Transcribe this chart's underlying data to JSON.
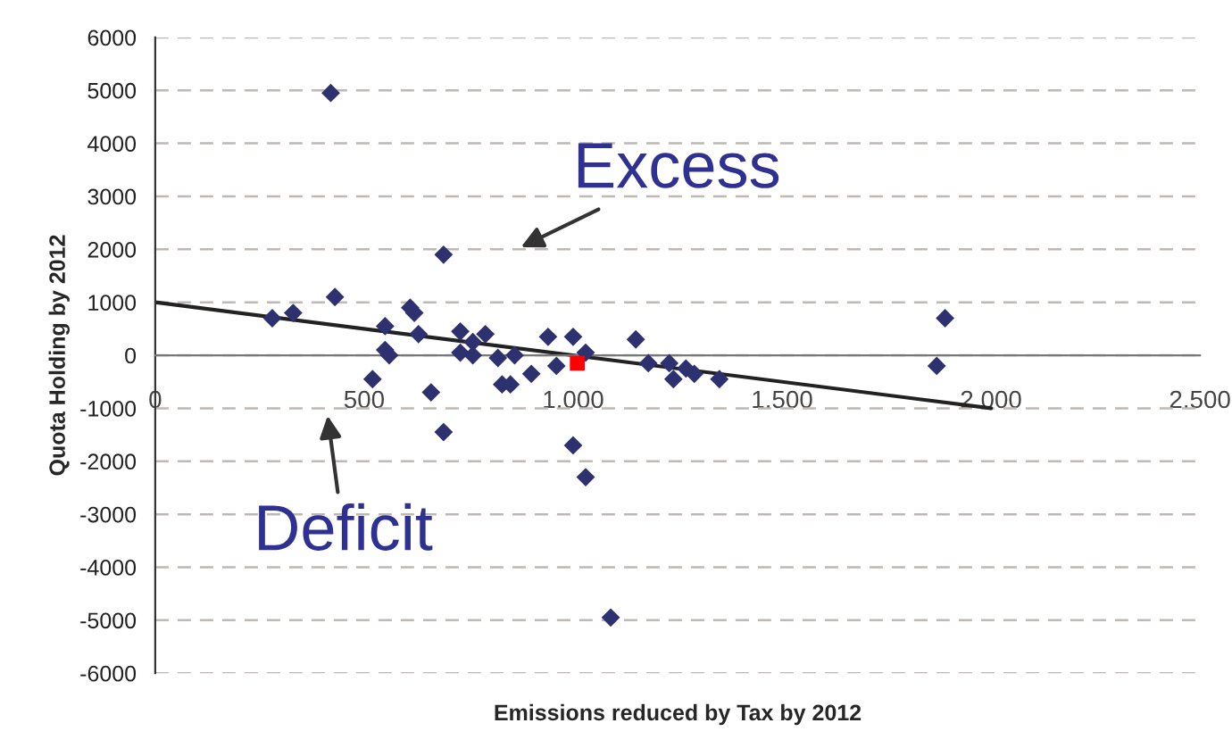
{
  "chart_data": {
    "type": "scatter",
    "xlabel": "Emissions reduced by Tax by 2012",
    "ylabel": "Quota Holding by 2012",
    "annotations": [
      "Excess",
      "Deficit"
    ],
    "xlim": [
      0,
      2500
    ],
    "ylim": [
      -6000,
      6000
    ],
    "xticks": [
      0,
      {
        "value": 500,
        "label": "500"
      },
      {
        "value": 1000,
        "label": "1.000"
      },
      {
        "value": 1500,
        "label": "1.500"
      },
      {
        "value": 2000,
        "label": "2.000"
      },
      {
        "value": 2500,
        "label": "2.500"
      }
    ],
    "yticks": [
      -6000,
      -5000,
      -4000,
      -3000,
      -2000,
      -1000,
      0,
      1000,
      2000,
      3000,
      4000,
      5000,
      6000
    ],
    "grid": "y",
    "marker": "diamond",
    "legend": false,
    "series": [
      {
        "color": "#2e3170",
        "x": [
          280,
          330,
          420,
          430,
          520,
          550,
          550,
          560,
          610,
          620,
          630,
          660,
          690,
          690,
          730,
          730,
          760,
          760,
          790,
          820,
          830,
          850,
          860,
          900,
          940,
          960,
          1000,
          1000,
          1030,
          1030,
          1090,
          1150,
          1180,
          1230,
          1240,
          1270,
          1290,
          1350,
          1870,
          1890
        ],
        "values": [
          700,
          800,
          4950,
          1100,
          -450,
          550,
          100,
          0,
          900,
          800,
          400,
          -700,
          1900,
          -1450,
          450,
          50,
          0,
          250,
          400,
          -50,
          -550,
          -550,
          0,
          -350,
          350,
          -200,
          350,
          -1700,
          -2300,
          50,
          -4950,
          300,
          -150,
          -150,
          -450,
          -250,
          -350,
          -450,
          -200,
          700
        ]
      },
      {
        "type": "scatter",
        "color": "#ff0000",
        "marker": "square",
        "x": [
          1010
        ],
        "values": [
          -150
        ]
      },
      {
        "type": "line",
        "color": "#222222",
        "marker": "none",
        "x": [
          0,
          2000
        ],
        "values": [
          1000,
          -1000
        ]
      }
    ]
  }
}
